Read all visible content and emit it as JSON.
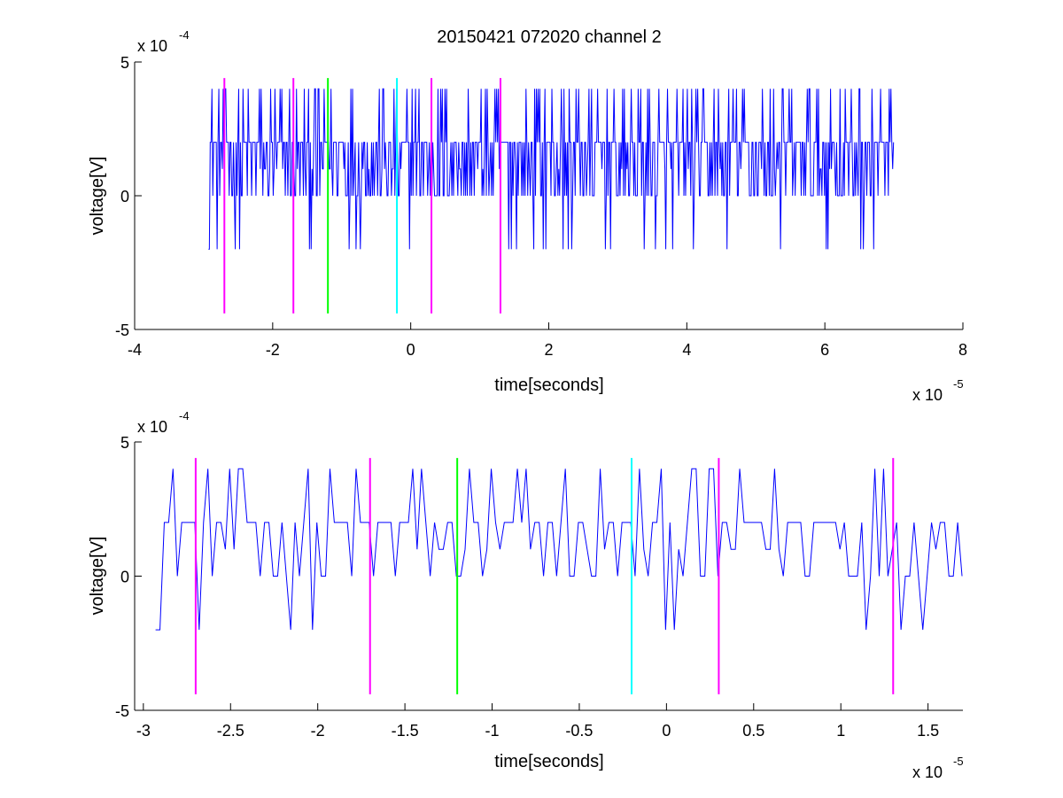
{
  "figure": {
    "background": "#ffffff",
    "axis_color": "#000000",
    "trace_color": "#0000ff"
  },
  "chart_data": [
    {
      "type": "line",
      "title": "20150421 072020 channel 2",
      "xlabel": "time[seconds]",
      "ylabel": "voltage[V]",
      "x_multiplier": "x 10",
      "x_exponent": "-5",
      "y_multiplier": "x 10",
      "y_exponent": "-4",
      "xlim": [
        -4,
        8
      ],
      "ylim": [
        -5,
        5
      ],
      "xticks": [
        -4,
        -2,
        0,
        2,
        4,
        6,
        8
      ],
      "xtick_labels": [
        "-4",
        "-2",
        "0",
        "2",
        "4",
        "6",
        "8"
      ],
      "yticks": [
        -5,
        0,
        5
      ],
      "ytick_labels": [
        "-5",
        "0",
        "5"
      ],
      "grid": false,
      "box": "left-bottom",
      "series": [
        {
          "x_range": [
            -2.93,
            7.0
          ],
          "sample_step": 0.025,
          "y_min": -2,
          "y_max": 4,
          "note_levels": [
            -2,
            0,
            1,
            2,
            4
          ]
        }
      ],
      "markers": [
        {
          "x": -2.7,
          "color": "#ff00ff"
        },
        {
          "x": -1.7,
          "color": "#ff00ff"
        },
        {
          "x": -1.2,
          "color": "#00ff00"
        },
        {
          "x": -0.2,
          "color": "#00ffff"
        },
        {
          "x": 0.3,
          "color": "#ff00ff"
        },
        {
          "x": 1.3,
          "color": "#ff00ff"
        }
      ],
      "marker_span": [
        -4.4,
        4.4
      ]
    },
    {
      "type": "line",
      "title": "",
      "xlabel": "time[seconds]",
      "ylabel": "voltage[V]",
      "x_multiplier": "x 10",
      "x_exponent": "-5",
      "y_multiplier": "x 10",
      "y_exponent": "-4",
      "xlim": [
        -3.05,
        1.7
      ],
      "ylim": [
        -5,
        5
      ],
      "xticks": [
        -3,
        -2.5,
        -2,
        -1.5,
        -1,
        -0.5,
        0,
        0.5,
        1,
        1.5
      ],
      "xtick_labels": [
        "-3",
        "-2.5",
        "-2",
        "-1.5",
        "-1",
        "-0.5",
        "0",
        "0.5",
        "1",
        "1.5"
      ],
      "yticks": [
        -5,
        0,
        5
      ],
      "ytick_labels": [
        "-5",
        "0",
        "5"
      ],
      "grid": false,
      "box": "left-bottom",
      "series": [
        {
          "x_range": [
            -2.93,
            1.7
          ],
          "sample_step": 0.025,
          "y_min": -2,
          "y_max": 4,
          "note_levels": [
            -2,
            0,
            1,
            2,
            4
          ]
        }
      ],
      "markers": [
        {
          "x": -2.7,
          "color": "#ff00ff"
        },
        {
          "x": -1.7,
          "color": "#ff00ff"
        },
        {
          "x": -1.2,
          "color": "#00ff00"
        },
        {
          "x": -0.2,
          "color": "#00ffff"
        },
        {
          "x": 0.3,
          "color": "#ff00ff"
        },
        {
          "x": 1.3,
          "color": "#ff00ff"
        }
      ],
      "marker_span": [
        -4.4,
        4.4
      ]
    }
  ]
}
